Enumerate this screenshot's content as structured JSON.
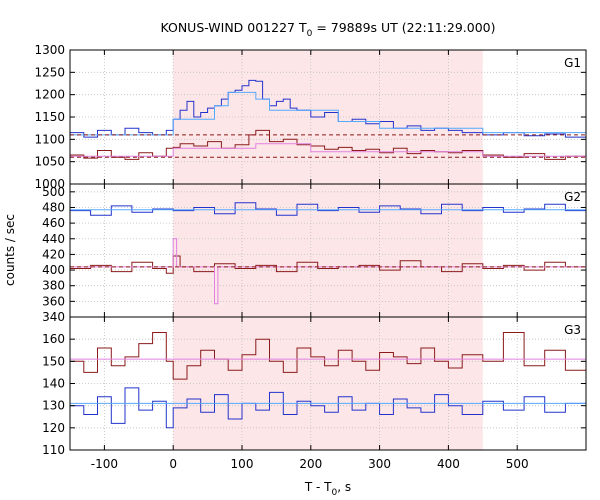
{
  "chart_data": {
    "type": "line",
    "title": {
      "main": "KONUS-WIND 001227 T",
      "sub": "0",
      "rest": " = 79889s UT (22:11:29.000)"
    },
    "xlabel": {
      "main": "T - T",
      "sub": "0",
      "rest": ", s"
    },
    "ylabel": "counts / sec",
    "xlim": [
      -150,
      600
    ],
    "xticks": [
      -100,
      0,
      100,
      200,
      300,
      400,
      500
    ],
    "shaded_interval": [
      0,
      450
    ],
    "grid": true,
    "colors": {
      "shade": "#fde6e8",
      "grid": "#c0c0c0",
      "blue": "#2233cc",
      "light_blue": "#55aaff",
      "dark_red": "#8b1a1a",
      "pink": "#e080e0"
    },
    "panels": [
      {
        "label": "G1",
        "ylim": [
          1000,
          1300
        ],
        "yticks": [
          1000,
          1050,
          1100,
          1150,
          1200,
          1250,
          1300
        ],
        "series": [
          {
            "role": "upper-lightcurve",
            "color": "blue",
            "x": [
              -150,
              -130,
              -110,
              -90,
              -70,
              -50,
              -30,
              -10,
              0,
              10,
              20,
              30,
              40,
              50,
              60,
              70,
              80,
              90,
              100,
              110,
              120,
              130,
              140,
              150,
              160,
              170,
              180,
              200,
              220,
              240,
              260,
              280,
              300,
              320,
              340,
              360,
              380,
              400,
              420,
              450,
              480,
              510,
              540,
              570,
              600
            ],
            "y": [
              1115,
              1105,
              1120,
              1110,
              1125,
              1115,
              1110,
              1120,
              1145,
              1165,
              1185,
              1150,
              1160,
              1170,
              1175,
              1190,
              1205,
              1210,
              1220,
              1232,
              1230,
              1190,
              1175,
              1185,
              1190,
              1170,
              1165,
              1150,
              1160,
              1140,
              1145,
              1135,
              1140,
              1125,
              1130,
              1120,
              1125,
              1120,
              1115,
              1110,
              1115,
              1108,
              1112,
              1105,
              1110
            ]
          },
          {
            "role": "upper-model",
            "color": "light_blue",
            "x": [
              -150,
              0,
              0,
              60,
              60,
              80,
              80,
              120,
              120,
              140,
              140,
              240,
              240,
              300,
              300,
              450,
              450,
              600
            ],
            "y": [
              1110,
              1110,
              1145,
              1145,
              1175,
              1175,
              1205,
              1205,
              1190,
              1190,
              1165,
              1165,
              1140,
              1140,
              1125,
              1125,
              1115,
              1115
            ]
          },
          {
            "role": "upper-background",
            "color": "dark_red",
            "dashed": true,
            "x": [
              -150,
              600
            ],
            "y": [
              1110,
              1110
            ]
          },
          {
            "role": "lower-lightcurve",
            "color": "dark_red",
            "x": [
              -150,
              -130,
              -110,
              -90,
              -70,
              -50,
              -30,
              -10,
              0,
              10,
              30,
              50,
              70,
              90,
              110,
              120,
              140,
              160,
              180,
              200,
              220,
              240,
              260,
              280,
              300,
              320,
              340,
              360,
              380,
              400,
              420,
              450,
              480,
              510,
              540,
              570,
              600
            ],
            "y": [
              1065,
              1058,
              1075,
              1060,
              1055,
              1070,
              1062,
              1080,
              1082,
              1090,
              1085,
              1095,
              1080,
              1088,
              1110,
              1120,
              1095,
              1100,
              1088,
              1085,
              1078,
              1082,
              1075,
              1078,
              1070,
              1080,
              1068,
              1075,
              1072,
              1070,
              1075,
              1065,
              1060,
              1068,
              1055,
              1062,
              1058
            ]
          },
          {
            "role": "lower-model",
            "color": "pink",
            "x": [
              -150,
              0,
              0,
              120,
              120,
              200,
              200,
              450,
              450,
              600
            ],
            "y": [
              1062,
              1062,
              1080,
              1080,
              1090,
              1090,
              1072,
              1072,
              1062,
              1062
            ]
          },
          {
            "role": "lower-background",
            "color": "dark_red",
            "dashed": true,
            "x": [
              -150,
              600
            ],
            "y": [
              1060,
              1060
            ]
          }
        ]
      },
      {
        "label": "G2",
        "ylim": [
          340,
          510
        ],
        "yticks": [
          340,
          360,
          380,
          400,
          420,
          440,
          460,
          480,
          500
        ],
        "series": [
          {
            "role": "upper-lightcurve",
            "color": "blue",
            "x": [
              -150,
              -120,
              -90,
              -60,
              -30,
              0,
              30,
              60,
              90,
              120,
              150,
              180,
              210,
              240,
              270,
              300,
              330,
              360,
              390,
              420,
              450,
              480,
              510,
              540,
              570,
              600
            ],
            "y": [
              476,
              470,
              482,
              474,
              478,
              476,
              480,
              472,
              486,
              478,
              470,
              484,
              476,
              480,
              474,
              482,
              478,
              472,
              484,
              476,
              480,
              474,
              478,
              484,
              476,
              478
            ]
          },
          {
            "role": "upper-model",
            "color": "light_blue",
            "x": [
              -150,
              600
            ],
            "y": [
              477,
              477
            ]
          },
          {
            "role": "lower-lightcurve",
            "color": "dark_red",
            "x": [
              -150,
              -120,
              -90,
              -60,
              -30,
              -10,
              0,
              10,
              30,
              60,
              90,
              120,
              150,
              180,
              210,
              240,
              270,
              300,
              330,
              360,
              390,
              420,
              450,
              480,
              510,
              540,
              570,
              600
            ],
            "y": [
              402,
              406,
              398,
              410,
              402,
              396,
              418,
              404,
              398,
              408,
              402,
              406,
              398,
              410,
              402,
              404,
              406,
              400,
              412,
              404,
              398,
              408,
              402,
              406,
              400,
              410,
              404,
              406
            ]
          },
          {
            "role": "lower-model",
            "color": "pink",
            "x": [
              -150,
              0,
              0,
              5,
              5,
              60,
              60,
              65,
              65,
              600
            ],
            "y": [
              404,
              404,
              440,
              440,
              404,
              404,
              357,
              357,
              404,
              404
            ]
          },
          {
            "role": "lower-background",
            "color": "dark_red",
            "dashed": true,
            "x": [
              -150,
              600
            ],
            "y": [
              404,
              404
            ]
          }
        ]
      },
      {
        "label": "G3",
        "ylim": [
          110,
          170
        ],
        "yticks": [
          110,
          120,
          130,
          140,
          150,
          160
        ],
        "series": [
          {
            "role": "upper-lightcurve",
            "color": "dark_red",
            "x": [
              -150,
              -130,
              -110,
              -90,
              -70,
              -50,
              -30,
              -10,
              0,
              20,
              40,
              60,
              80,
              100,
              120,
              140,
              160,
              180,
              200,
              220,
              240,
              260,
              280,
              300,
              320,
              340,
              360,
              380,
              400,
              420,
              450,
              480,
              510,
              540,
              570,
              600
            ],
            "y": [
              150,
              145,
              156,
              148,
              152,
              158,
              163,
              150,
              142,
              148,
              155,
              151,
              146,
              153,
              160,
              150,
              145,
              156,
              152,
              148,
              155,
              150,
              146,
              154,
              152,
              149,
              156,
              150,
              147,
              153,
              150,
              163,
              148,
              155,
              146,
              152
            ]
          },
          {
            "role": "upper-model",
            "color": "pink",
            "x": [
              -150,
              600
            ],
            "y": [
              151,
              151
            ]
          },
          {
            "role": "lower-lightcurve",
            "color": "blue",
            "x": [
              -150,
              -130,
              -110,
              -90,
              -70,
              -50,
              -30,
              -10,
              0,
              20,
              40,
              60,
              80,
              100,
              120,
              140,
              160,
              180,
              200,
              220,
              240,
              260,
              280,
              300,
              320,
              340,
              360,
              380,
              400,
              420,
              450,
              480,
              510,
              540,
              570,
              600
            ],
            "y": [
              130,
              126,
              134,
              122,
              138,
              128,
              132,
              120,
              129,
              133,
              127,
              135,
              124,
              131,
              128,
              136,
              126,
              132,
              130,
              127,
              134,
              128,
              131,
              126,
              133,
              129,
              127,
              135,
              130,
              126,
              132,
              128,
              134,
              127,
              131,
              135
            ]
          },
          {
            "role": "lower-model",
            "color": "light_blue",
            "x": [
              -150,
              600
            ],
            "y": [
              131,
              131
            ]
          }
        ]
      }
    ]
  }
}
